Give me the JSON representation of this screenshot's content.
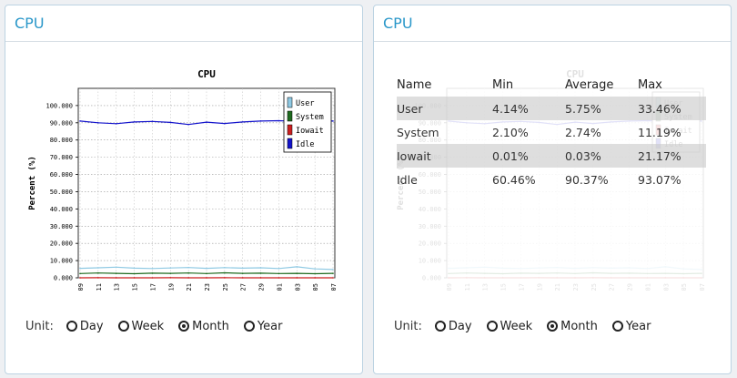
{
  "left_panel": {
    "title": "CPU",
    "unit": {
      "label": "Unit:",
      "options": [
        "Day",
        "Week",
        "Month",
        "Year"
      ],
      "selected": "Month"
    }
  },
  "right_panel": {
    "title": "CPU",
    "table": {
      "headers": [
        "Name",
        "Min",
        "Average",
        "Max"
      ],
      "rows": [
        {
          "name": "User",
          "min": "4.14%",
          "avg": "5.75%",
          "max": "33.46%"
        },
        {
          "name": "System",
          "min": "2.10%",
          "avg": "2.74%",
          "max": "11.19%"
        },
        {
          "name": "Iowait",
          "min": "0.01%",
          "avg": "0.03%",
          "max": "21.17%"
        },
        {
          "name": "Idle",
          "min": "60.46%",
          "avg": "90.37%",
          "max": "93.07%"
        }
      ]
    },
    "unit": {
      "label": "Unit:",
      "options": [
        "Day",
        "Week",
        "Month",
        "Year"
      ],
      "selected": "Month"
    }
  },
  "chart_data": {
    "type": "line",
    "title": "CPU",
    "ylabel": "Percent (%)",
    "xlabel": "",
    "ylim": [
      0,
      110
    ],
    "yticks": [
      "0.000",
      "10.000",
      "20.000",
      "30.000",
      "40.000",
      "50.000",
      "60.000",
      "70.000",
      "80.000",
      "90.000",
      "100.000"
    ],
    "xticks": [
      "09",
      "11",
      "13",
      "15",
      "17",
      "19",
      "21",
      "23",
      "25",
      "27",
      "29",
      "01",
      "03",
      "05",
      "07"
    ],
    "grid": true,
    "legend_position": "top-right",
    "series": [
      {
        "name": "User",
        "color": "#8ec9e3",
        "values": [
          5.5,
          5.8,
          6.2,
          5.6,
          5.4,
          5.7,
          6.0,
          5.5,
          5.9,
          5.6,
          5.8,
          5.4,
          6.4,
          5.2,
          4.8
        ]
      },
      {
        "name": "System",
        "color": "#1f6b1f",
        "values": [
          2.5,
          2.8,
          2.6,
          2.4,
          2.7,
          2.6,
          2.8,
          2.5,
          2.9,
          2.6,
          2.7,
          2.5,
          2.6,
          2.4,
          2.6
        ]
      },
      {
        "name": "Iowait",
        "color": "#cc1f1f",
        "values": [
          0.0,
          0.03,
          0.02,
          0.01,
          0.0,
          0.05,
          0.02,
          0.01,
          0.03,
          0.02,
          0.01,
          0.0,
          0.02,
          0.01,
          0.0
        ]
      },
      {
        "name": "Idle",
        "color": "#1414cc",
        "values": [
          91.0,
          90.0,
          89.5,
          90.5,
          90.8,
          90.2,
          89.0,
          90.4,
          89.6,
          90.5,
          91.0,
          91.2,
          90.8,
          91.3,
          91.0
        ]
      }
    ]
  }
}
